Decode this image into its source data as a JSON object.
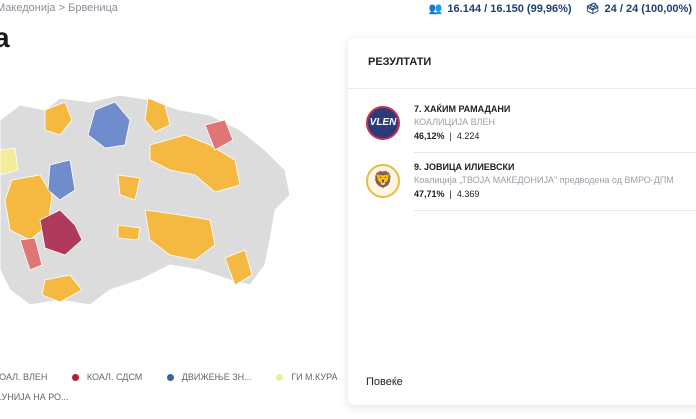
{
  "breadcrumb": {
    "parent": "Македонија",
    "separator": ">",
    "current": "Брвеница"
  },
  "stats": {
    "voters": "16.144 / 16.150 (99,96%)",
    "stations": "24 / 24 (100,00%)",
    "voters_icon": "people-icon",
    "stations_icon": "ballot-box-icon"
  },
  "page_title": "а",
  "results": {
    "heading": "РЕЗУЛТАТИ",
    "candidates": [
      {
        "name": "7. ХАЌИМ РАМАДАНИ",
        "party": "КОАЛИЦИЈА ВЛЕН",
        "percent": "46,12%",
        "votes": "4.224",
        "logo_text": "VLEN",
        "color": "#2b3a7a"
      },
      {
        "name": "9. ЈОВИЦА ИЛИЕВСКИ",
        "party": "Коалиција „ТВОЈА МАКЕДОНИЈА\" предводена од ВМРО-ДПМ",
        "percent": "47,71%",
        "votes": "4.369",
        "color": "#d33b1f"
      }
    ],
    "more_label": "Повеќе"
  },
  "legend": [
    {
      "label": "КОАЛ. ВЛЕН",
      "color": "#2b3a7a"
    },
    {
      "label": "КОАЛ. СДСМ",
      "color": "#b81c2c"
    },
    {
      "label": "ДВИЖЕЊЕ ЗН...",
      "color": "#3d5fa8"
    },
    {
      "label": "ГИ М.КУРА",
      "color": "#e5ef9c"
    },
    {
      "label": "...УНИЈА НА РО...",
      "color": "#f5b942"
    }
  ],
  "map_colors": {
    "base": "#dcdcdc",
    "vmro": "#f5b942",
    "vlen": "#b03a5b",
    "sdsm": "#e07575",
    "zna": "#6f8ccc",
    "kura": "#f3ec9c"
  }
}
